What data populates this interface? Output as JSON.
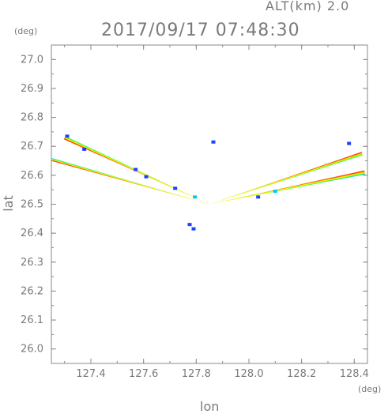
{
  "header": {
    "altitude_label": "ALT(km) 2.0",
    "datetime": "2017/09/17 07:48:30"
  },
  "chart_data": {
    "type": "scatter",
    "title": "2017/09/17 07:48:30",
    "subtitle": "ALT(km) 2.0",
    "xlabel": "lon",
    "ylabel": "lat",
    "x_unit": "(deg)",
    "y_unit": "(deg)",
    "xlim": [
      127.25,
      128.45
    ],
    "ylim": [
      25.95,
      27.05
    ],
    "x_ticks": [
      "127.4",
      "127.6",
      "127.8",
      "128.0",
      "128.2",
      "128.4"
    ],
    "y_ticks": [
      "26.0",
      "26.1",
      "26.2",
      "26.3",
      "26.4",
      "26.5",
      "26.6",
      "26.7",
      "26.8",
      "26.9",
      "27.0"
    ],
    "grid": false,
    "radar_origin": [
      127.85,
      26.5
    ],
    "series": [
      {
        "color_scale": [
          "#2040ff",
          "#00c8ff",
          "#40ff40",
          "#ffff00",
          "#ff6000",
          "#ff0000"
        ],
        "beams": [
          {
            "lon_end": 127.3,
            "lat_end": 26.73,
            "width": 0.012
          },
          {
            "lon_end": 127.25,
            "lat_end": 26.655,
            "width": 0.01
          },
          {
            "lon_end": 128.43,
            "lat_end": 26.675,
            "width": 0.012
          },
          {
            "lon_end": 128.44,
            "lat_end": 26.61,
            "width": 0.014
          }
        ],
        "echoes": [
          {
            "lon": 127.31,
            "lat": 26.735,
            "intensity": 0
          },
          {
            "lon": 127.375,
            "lat": 26.69,
            "intensity": 0
          },
          {
            "lon": 127.57,
            "lat": 26.62,
            "intensity": 0
          },
          {
            "lon": 127.61,
            "lat": 26.595,
            "intensity": 0
          },
          {
            "lon": 127.72,
            "lat": 26.555,
            "intensity": 0
          },
          {
            "lon": 127.795,
            "lat": 26.525,
            "intensity": 1
          },
          {
            "lon": 127.865,
            "lat": 26.715,
            "intensity": 0
          },
          {
            "lon": 127.775,
            "lat": 26.43,
            "intensity": 0
          },
          {
            "lon": 127.79,
            "lat": 26.415,
            "intensity": 0
          },
          {
            "lon": 128.035,
            "lat": 26.525,
            "intensity": 0
          },
          {
            "lon": 128.38,
            "lat": 26.71,
            "intensity": 0
          },
          {
            "lon": 128.1,
            "lat": 26.545,
            "intensity": 1
          }
        ]
      }
    ]
  }
}
